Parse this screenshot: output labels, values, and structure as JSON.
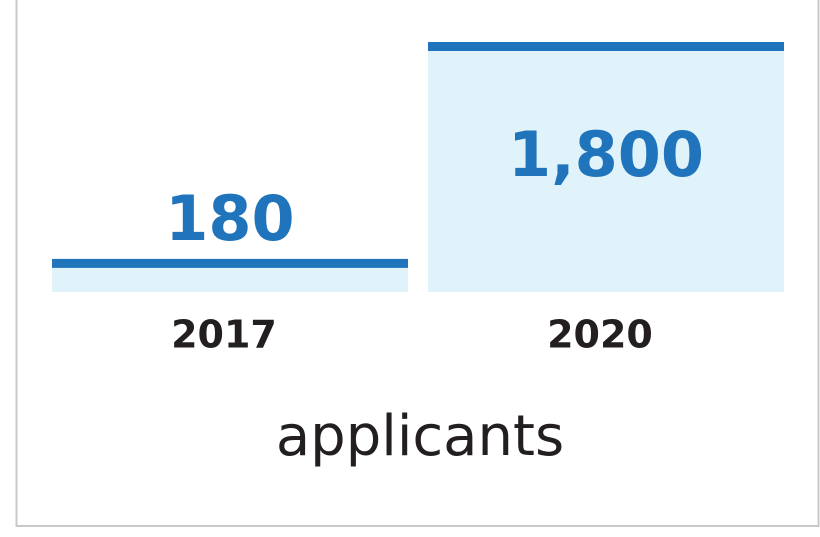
{
  "chart_data": {
    "type": "bar",
    "categories": [
      "2017",
      "2020"
    ],
    "values": [
      180,
      1800
    ],
    "value_labels": [
      "180",
      "1,800"
    ],
    "xlabel": "applicants",
    "color": "#1f74bb",
    "fill": "#e0f3fa"
  }
}
